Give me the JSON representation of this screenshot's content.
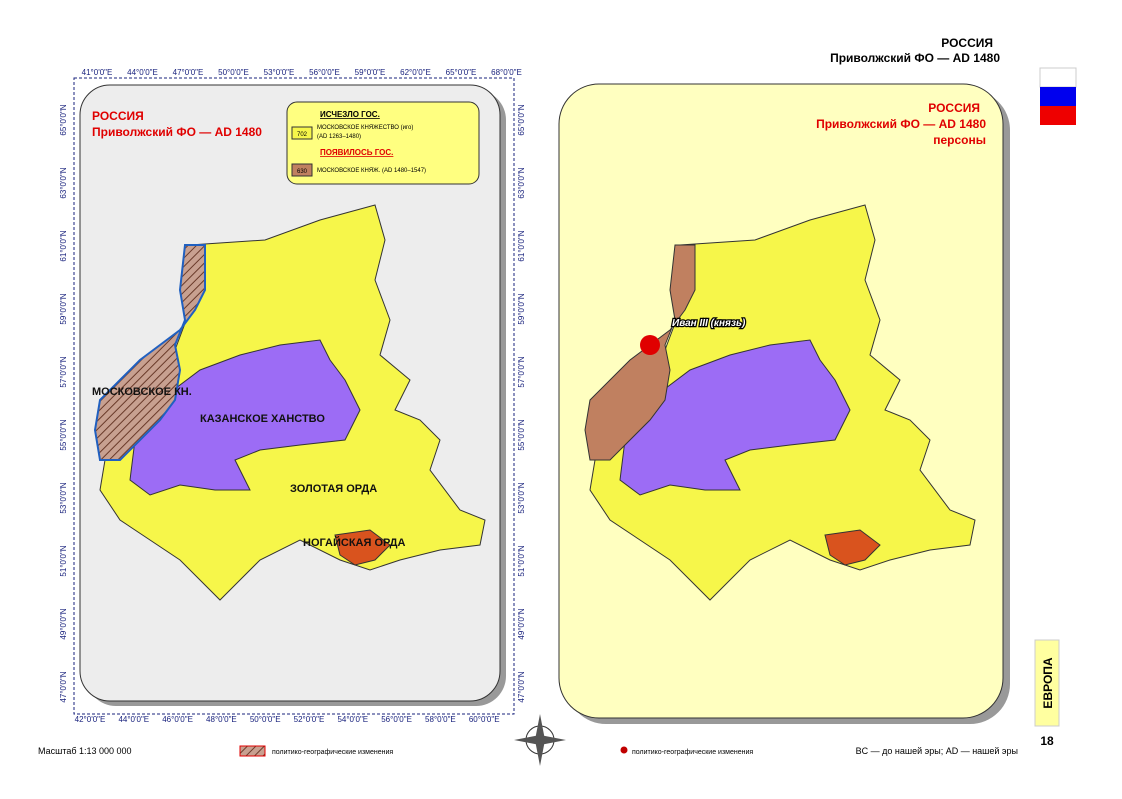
{
  "header": {
    "country": "РОССИЯ",
    "subtitle": "Приволжский ФО — AD 1480"
  },
  "left_map": {
    "title": "РОССИЯ",
    "subtitle": "Приволжский ФО — AD 1480",
    "legend": {
      "vanished_heading": "ИСЧЕЗЛО ГОС.",
      "vanished_code": "702",
      "vanished_name": "МОСКОВСКОЕ КНЯЖЕСТВО (иго)",
      "vanished_dates": "(AD 1263–1480)",
      "appeared_heading": "ПОЯВИЛОСЬ ГОС.",
      "appeared_code": "630",
      "appeared_name": "МОСКОВСКОЕ КНЯЖ. (AD 1480–1547)"
    },
    "regions": [
      "МОСКОВСКОЕ КН.",
      "КАЗАНСКОЕ ХАНСТВО",
      "ЗОЛОТАЯ ОРДА",
      "НОГАЙСКАЯ ОРДА"
    ],
    "top_ticks": [
      "41°0'0\"E",
      "44°0'0\"E",
      "47°0'0\"E",
      "50°0'0\"E",
      "53°0'0\"E",
      "56°0'0\"E",
      "59°0'0\"E",
      "62°0'0\"E",
      "65°0'0\"E",
      "68°0'0\"E"
    ],
    "bottom_ticks": [
      "42°0'0\"E",
      "44°0'0\"E",
      "46°0'0\"E",
      "48°0'0\"E",
      "50°0'0\"E",
      "52°0'0\"E",
      "54°0'0\"E",
      "56°0'0\"E",
      "58°0'0\"E",
      "60°0'0\"E"
    ],
    "left_ticks": [
      "65°0'0\"N",
      "63°0'0\"N",
      "61°0'0\"N",
      "59°0'0\"N",
      "57°0'0\"N",
      "55°0'0\"N",
      "53°0'0\"N",
      "51°0'0\"N",
      "49°0'0\"N",
      "47°0'0\"N"
    ],
    "right_ticks": [
      "65°0'0\"N",
      "63°0'0\"N",
      "61°0'0\"N",
      "59°0'0\"N",
      "57°0'0\"N",
      "55°0'0\"N",
      "53°0'0\"N",
      "51°0'0\"N",
      "49°0'0\"N",
      "47°0'0\"N"
    ]
  },
  "right_map": {
    "title": "РОССИЯ",
    "subtitle": "Приволжский ФО — AD 1480",
    "note": "персоны",
    "person": "Иван III (князь)"
  },
  "footer": {
    "scale": "Масштаб 1:13 000 000",
    "hatch_legend": "политико-географические изменения",
    "dot_legend": "политико-географические изменения",
    "era_note": "BC — до нашей эры; AD — нашей эры",
    "section": "ЕВРОПА",
    "page": "18"
  }
}
